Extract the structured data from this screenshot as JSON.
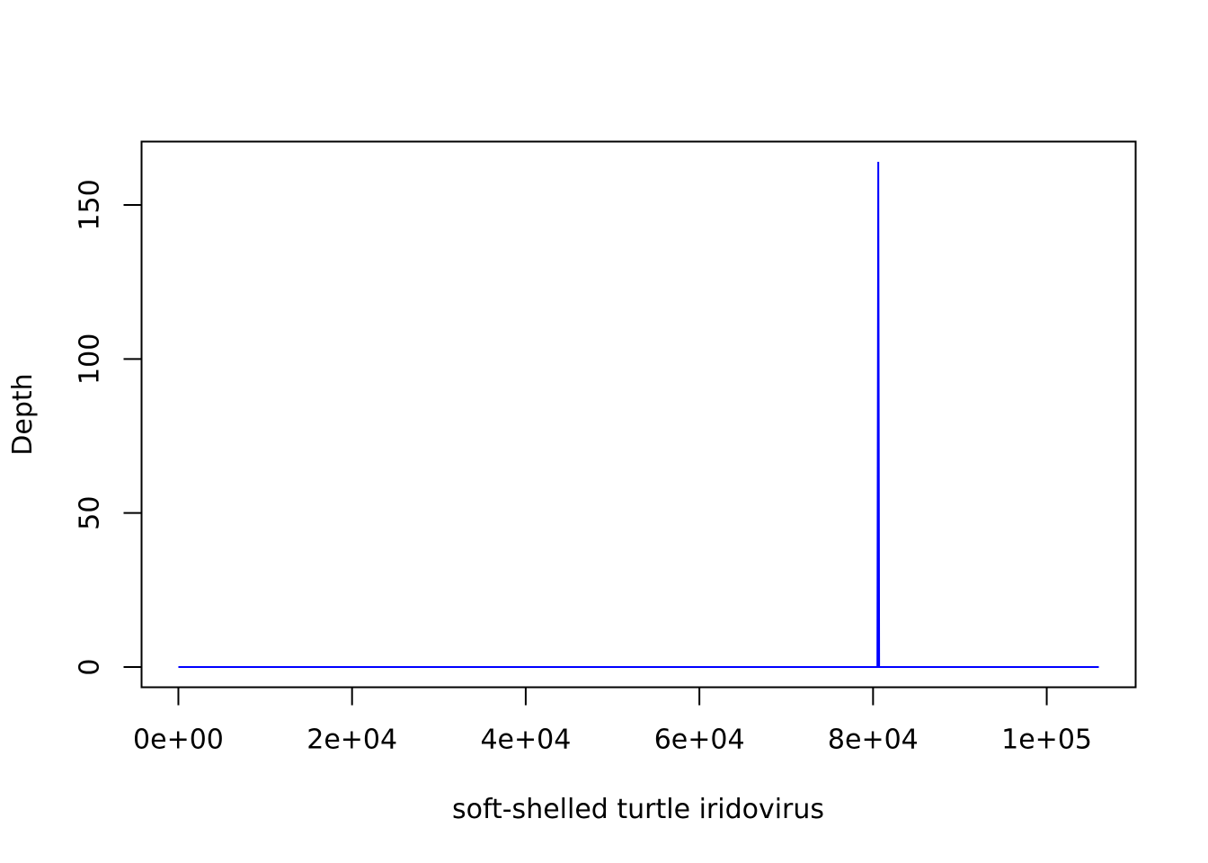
{
  "chart_data": {
    "type": "line",
    "title": "",
    "xlabel": "soft-shelled turtle iridovirus",
    "ylabel": "Depth",
    "x_ticks": [
      0,
      20000,
      40000,
      60000,
      80000,
      100000
    ],
    "x_tick_labels": [
      "0e+00",
      "2e+04",
      "4e+04",
      "6e+04",
      "8e+04",
      "1e+05"
    ],
    "y_ticks": [
      0,
      50,
      100,
      150
    ],
    "y_tick_labels": [
      "0",
      "50",
      "100",
      "150"
    ],
    "xlim": [
      -4240,
      110240
    ],
    "ylim": [
      -6.56,
      170.56
    ],
    "grid": false,
    "legend": "none",
    "series": [
      {
        "color": "#0000ff",
        "x": [
          1,
          80500,
          80600,
          80700,
          106000
        ],
        "y": [
          0,
          0,
          164,
          0,
          0
        ]
      }
    ]
  }
}
